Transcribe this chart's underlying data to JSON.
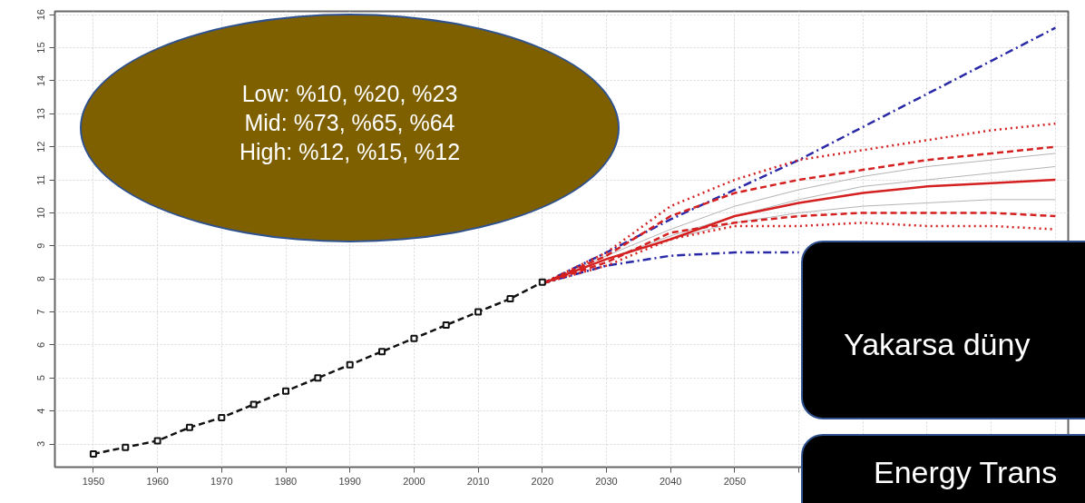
{
  "chart_data": {
    "type": "line",
    "annotations": [
      "Low: %10, %20, %23\nMid: %73, %65, %64\nHigh: %12, %15, %12",
      "Yakarsa düny",
      "Energy Trans"
    ],
    "xlim": [
      1944,
      2102
    ],
    "ylim": [
      2.3,
      16.1
    ],
    "xticks": [
      1950,
      1960,
      1970,
      1980,
      1990,
      2000,
      2010,
      2020,
      2030,
      2040,
      2050,
      {
        "value": 2060,
        "label": null
      },
      {
        "value": 2070,
        "label": null
      },
      {
        "value": 2080,
        "label": null
      },
      {
        "value": 2090,
        "label": null
      },
      {
        "value": 2100,
        "label": null
      }
    ],
    "yticks": [
      3,
      4,
      5,
      6,
      7,
      8,
      9,
      10,
      11,
      12,
      13,
      14,
      15,
      16
    ],
    "grid": true,
    "series": [
      {
        "color": "#b4b4b4",
        "line_style": "solid",
        "marker": "none",
        "x": [
          2020,
          2030,
          2040,
          2050,
          2060,
          2070,
          2080,
          2090,
          2100
        ],
        "values": [
          7.86,
          8.7,
          9.5,
          10.2,
          10.7,
          11.1,
          11.4,
          11.6,
          11.8
        ]
      },
      {
        "color": "#b4b4b4",
        "line_style": "solid",
        "marker": "none",
        "x": [
          2020,
          2030,
          2040,
          2050,
          2060,
          2070,
          2080,
          2090,
          2100
        ],
        "values": [
          7.86,
          8.6,
          9.3,
          9.9,
          10.4,
          10.8,
          11.0,
          11.2,
          11.4
        ]
      },
      {
        "color": "#b4b4b4",
        "line_style": "solid",
        "marker": "none",
        "x": [
          2020,
          2030,
          2040,
          2050,
          2060,
          2070,
          2080,
          2090,
          2100
        ],
        "values": [
          7.86,
          8.6,
          9.2,
          9.7,
          10.0,
          10.2,
          10.3,
          10.4,
          10.4
        ]
      },
      {
        "color": "#2a2aa8",
        "line_style": "dashdot",
        "marker": "none",
        "x": [
          2020,
          2030,
          2040,
          2050,
          2060,
          2070,
          2080,
          2090,
          2100
        ],
        "values": [
          7.86,
          8.8,
          9.8,
          10.7,
          11.6,
          12.6,
          13.6,
          14.6,
          15.6
        ]
      },
      {
        "color": "#2a2aa8",
        "line_style": "dashdot",
        "marker": "none",
        "x": [
          2020,
          2030,
          2040,
          2050,
          2060
        ],
        "values": [
          7.86,
          8.4,
          8.7,
          8.8,
          8.8
        ]
      },
      {
        "color": "#d42020",
        "line_style": "dotted",
        "marker": "none",
        "x": [
          2020,
          2030,
          2040,
          2050,
          2060,
          2070,
          2080,
          2090,
          2100
        ],
        "values": [
          7.86,
          8.8,
          10.2,
          11.0,
          11.6,
          11.9,
          12.2,
          12.5,
          12.7
        ]
      },
      {
        "color": "#d42020",
        "line_style": "dashed",
        "marker": "none",
        "x": [
          2020,
          2030,
          2040,
          2050,
          2060,
          2070,
          2080,
          2090,
          2100
        ],
        "values": [
          7.86,
          8.7,
          9.9,
          10.6,
          11.0,
          11.3,
          11.6,
          11.8,
          12.0
        ]
      },
      {
        "color": "#d42020",
        "line_style": "solid",
        "marker": "none",
        "x": [
          2020,
          2030,
          2040,
          2050,
          2060,
          2070,
          2080,
          2090,
          2100
        ],
        "values": [
          7.86,
          8.6,
          9.2,
          9.9,
          10.3,
          10.6,
          10.8,
          10.9,
          11.0
        ]
      },
      {
        "color": "#d42020",
        "line_style": "dashed",
        "marker": "none",
        "x": [
          2020,
          2030,
          2040,
          2050,
          2060,
          2070,
          2080,
          2090,
          2100
        ],
        "values": [
          7.86,
          8.5,
          9.4,
          9.7,
          9.9,
          10.0,
          10.0,
          10.0,
          9.9
        ]
      },
      {
        "color": "#d42020",
        "line_style": "dotted",
        "marker": "none",
        "x": [
          2020,
          2030,
          2040,
          2050,
          2060,
          2070,
          2080,
          2090,
          2100
        ],
        "values": [
          7.86,
          8.4,
          9.2,
          9.6,
          9.6,
          9.7,
          9.6,
          9.6,
          9.5
        ]
      },
      {
        "color": "#111111",
        "line_style": "dashed",
        "marker": "square",
        "x": [
          1950,
          1955,
          1960,
          1965,
          1970,
          1975,
          1980,
          1985,
          1990,
          1995,
          2000,
          2005,
          2010,
          2015,
          2020
        ],
        "values": [
          2.7,
          2.9,
          3.1,
          3.5,
          3.8,
          4.2,
          4.6,
          5.0,
          5.4,
          5.8,
          6.2,
          6.6,
          7.0,
          7.4,
          7.9
        ]
      }
    ]
  }
}
